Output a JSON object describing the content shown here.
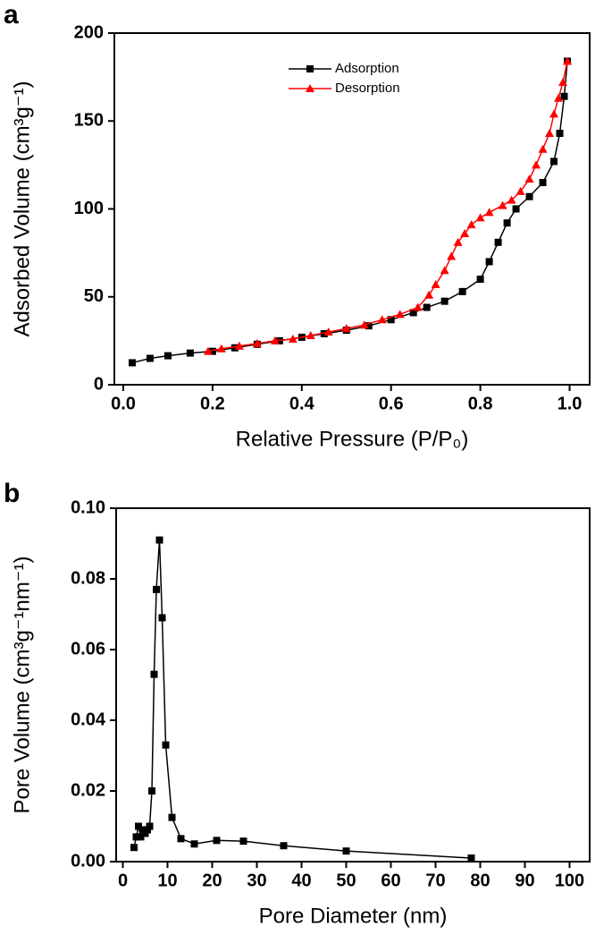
{
  "chart_data": [
    {
      "type": "line",
      "panel": "a",
      "xlabel": "Relative Pressure (P/P₀)",
      "ylabel": "Adsorbed Volume (cm³g⁻¹)",
      "xlim": [
        -0.02,
        1.045
      ],
      "ylim": [
        0,
        200
      ],
      "xticks": [
        {
          "value": 0,
          "label": "0.0"
        },
        {
          "value": 0.2,
          "label": "0.2"
        },
        {
          "value": 0.4,
          "label": "0.4"
        },
        {
          "value": 0.6,
          "label": "0.6"
        },
        {
          "value": 0.8,
          "label": "0.8"
        },
        {
          "value": 1,
          "label": "1.0"
        }
      ],
      "yticks": [
        0,
        50,
        100,
        150,
        200
      ],
      "legend": "top",
      "series": [
        {
          "name": "Adsorption",
          "color": "#000000",
          "marker": "square",
          "x": [
            0.02,
            0.06,
            0.1,
            0.15,
            0.2,
            0.25,
            0.3,
            0.35,
            0.4,
            0.45,
            0.5,
            0.55,
            0.6,
            0.65,
            0.68,
            0.72,
            0.76,
            0.8,
            0.82,
            0.84,
            0.86,
            0.88,
            0.91,
            0.94,
            0.965,
            0.978,
            0.988,
            0.995
          ],
          "values": [
            12.5,
            15,
            16.5,
            18,
            19,
            21,
            23,
            25,
            27,
            29,
            31,
            33.5,
            37,
            41,
            44,
            47.5,
            53,
            60,
            70,
            81,
            92,
            100,
            107,
            115,
            127,
            143,
            164,
            184
          ]
        },
        {
          "name": "Desorption",
          "color": "#ff0000",
          "marker": "triangle",
          "x": [
            0.995,
            0.985,
            0.975,
            0.965,
            0.955,
            0.94,
            0.925,
            0.91,
            0.89,
            0.87,
            0.85,
            0.82,
            0.8,
            0.78,
            0.765,
            0.75,
            0.735,
            0.72,
            0.7,
            0.685,
            0.66,
            0.62,
            0.58,
            0.54,
            0.5,
            0.46,
            0.42,
            0.38,
            0.34,
            0.3,
            0.26,
            0.22,
            0.19
          ],
          "values": [
            184,
            172,
            163,
            154,
            143,
            134,
            125,
            117,
            110,
            105,
            102,
            98,
            95,
            91,
            86,
            81,
            73,
            65,
            57,
            51,
            44,
            40,
            37,
            34,
            32,
            30,
            28,
            26,
            25,
            23.5,
            22,
            20.5,
            19
          ]
        }
      ]
    },
    {
      "type": "line",
      "panel": "b",
      "xlabel": "Pore Diameter (nm)",
      "ylabel": "Pore Volume (cm³g⁻¹nm⁻¹)",
      "xlim": [
        -1.5,
        104.5
      ],
      "ylim": [
        0,
        0.1
      ],
      "xticks": [
        0,
        10,
        20,
        30,
        40,
        50,
        60,
        70,
        80,
        90,
        100
      ],
      "yticks": [
        {
          "value": 0,
          "label": "0.00"
        },
        {
          "value": 0.02,
          "label": "0.02"
        },
        {
          "value": 0.04,
          "label": "0.04"
        },
        {
          "value": 0.06,
          "label": "0.06"
        },
        {
          "value": 0.08,
          "label": "0.08"
        },
        {
          "value": 0.1,
          "label": "0.10"
        }
      ],
      "series": [
        {
          "color": "#000000",
          "marker": "square",
          "x": [
            2.5,
            3,
            3.5,
            4,
            4.5,
            5,
            5.5,
            6,
            6.5,
            7,
            7.5,
            8.2,
            8.8,
            9.6,
            11,
            13,
            16,
            21,
            27,
            36,
            50,
            78
          ],
          "values": [
            0.004,
            0.007,
            0.01,
            0.007,
            0.009,
            0.008,
            0.009,
            0.01,
            0.02,
            0.053,
            0.077,
            0.091,
            0.069,
            0.033,
            0.0125,
            0.0065,
            0.005,
            0.006,
            0.0058,
            0.0045,
            0.003,
            0.001
          ]
        }
      ]
    }
  ]
}
